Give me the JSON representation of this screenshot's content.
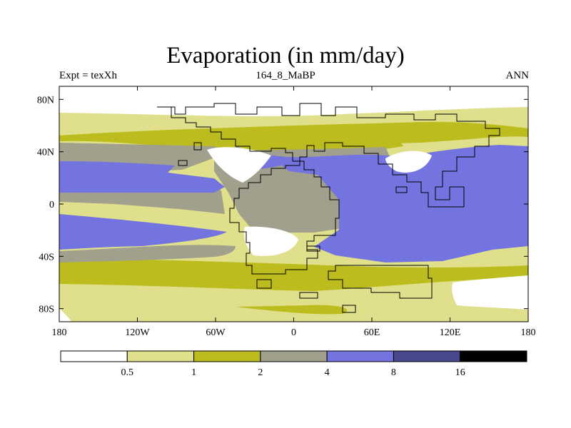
{
  "title": "Evaporation (in mm/day)",
  "subtitle_left": "Expt = texXh",
  "subtitle_center": "164_8_MaBP",
  "subtitle_right": "ANN",
  "chart_data": {
    "type": "heatmap",
    "title": "Evaporation (in mm/day)",
    "variable": "Evaporation",
    "units": "mm/day",
    "experiment": "texXh",
    "period": "164_8_MaBP",
    "season": "ANN",
    "x_ticks": [
      "180",
      "120W",
      "60W",
      "0",
      "60E",
      "120E",
      "180"
    ],
    "x_tick_values": [
      -180,
      -120,
      -60,
      0,
      60,
      120,
      180
    ],
    "y_ticks": [
      "80N",
      "40N",
      "0",
      "40S",
      "80S"
    ],
    "y_tick_values": [
      80,
      40,
      0,
      -40,
      -80
    ],
    "xlim": [
      -180,
      180
    ],
    "ylim": [
      -90,
      90
    ],
    "colorbar": {
      "levels": [
        "0.5",
        "1",
        "2",
        "4",
        "8",
        "16"
      ],
      "level_values": [
        0.5,
        1,
        2,
        4,
        8,
        16
      ],
      "colors": [
        "#ffffff",
        "#e0e08c",
        "#bcbc1e",
        "#a0a08c",
        "#7474e0",
        "#48488c",
        "#000000"
      ]
    },
    "land_outline_color": "#000000"
  }
}
